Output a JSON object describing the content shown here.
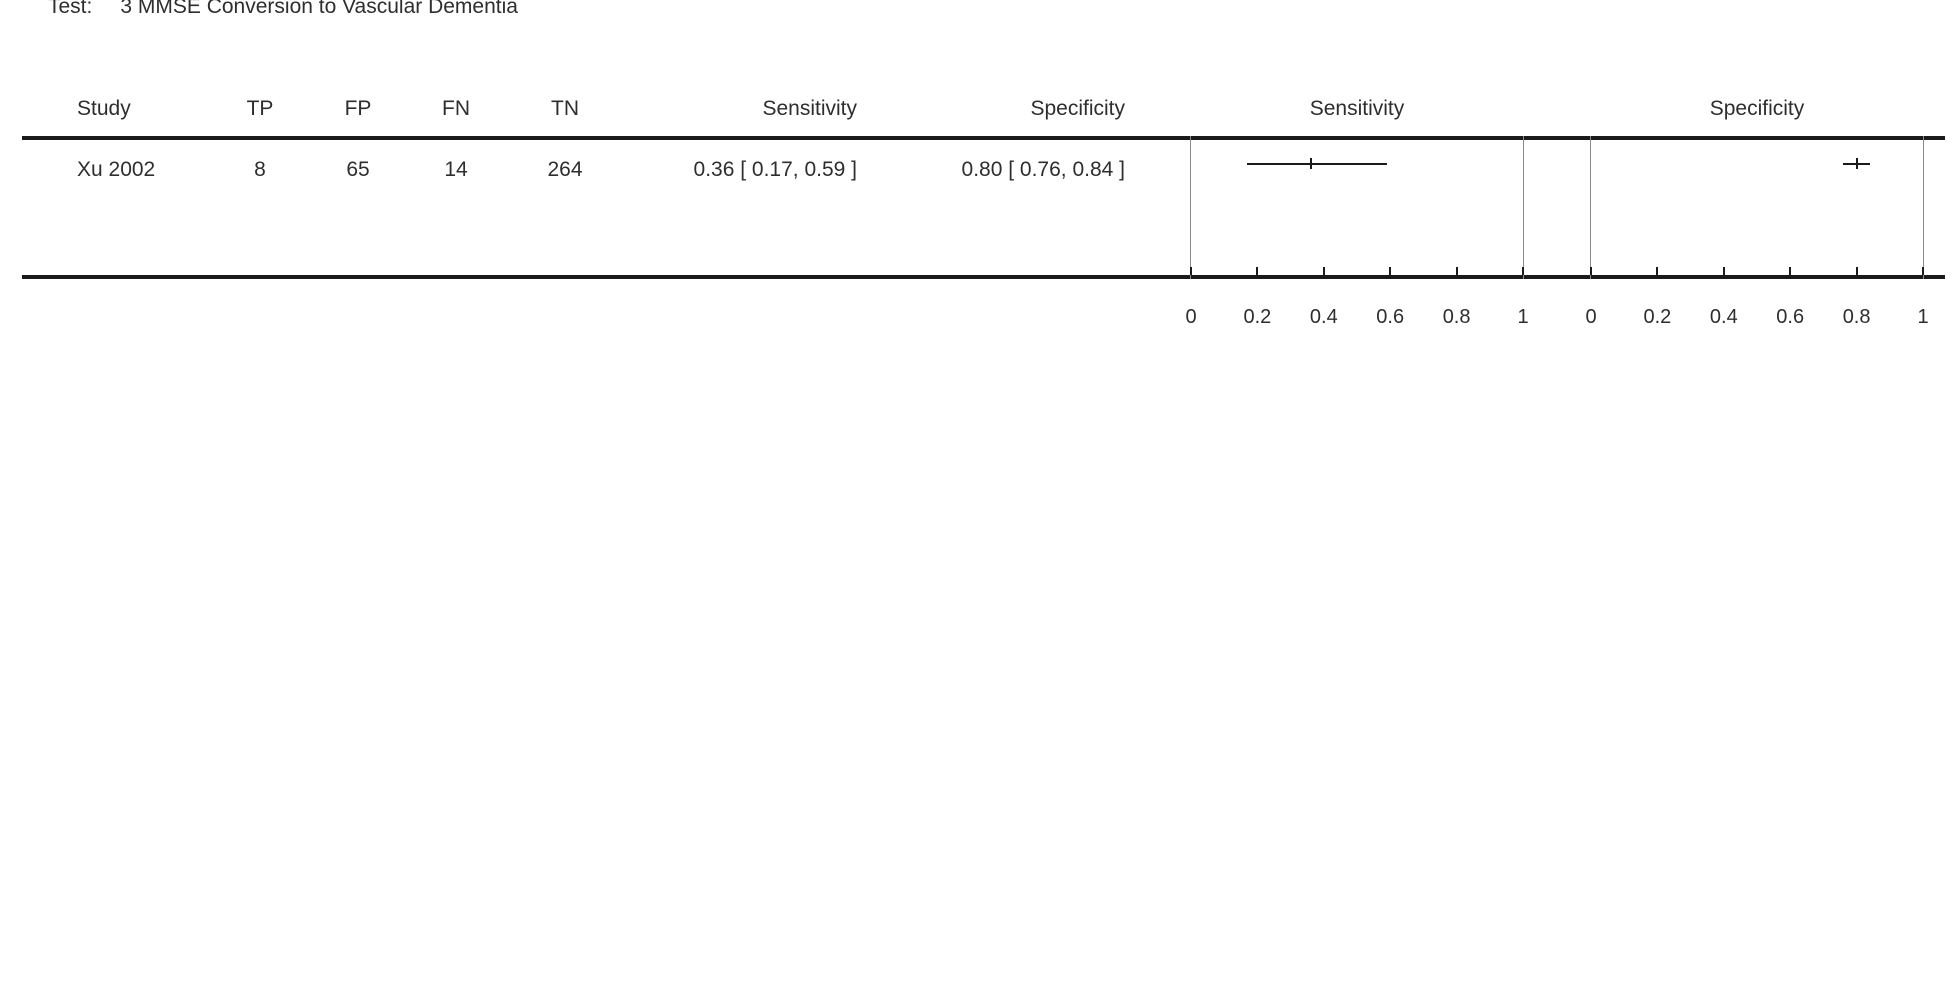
{
  "title": {
    "label": "Test:",
    "value": "3 MMSE Conversion to Vascular Dementia"
  },
  "table": {
    "headers": {
      "study": "Study",
      "tp": "TP",
      "fp": "FP",
      "fn": "FN",
      "tn": "TN",
      "sensitivity": "Sensitivity",
      "specificity": "Specificity"
    },
    "rows": [
      {
        "study": "Xu 2002",
        "tp": "8",
        "fp": "65",
        "fn": "14",
        "tn": "264",
        "sensitivity_ci": "0.36 [ 0.17, 0.59 ]",
        "specificity_ci": "0.80 [ 0.76, 0.84 ]"
      }
    ]
  },
  "chart_data": [
    {
      "type": "forest",
      "title": "Sensitivity",
      "xlim": [
        0,
        1
      ],
      "ticks": [
        0,
        0.2,
        0.4,
        0.6,
        0.8,
        1
      ],
      "tick_labels": [
        "0",
        "0.2",
        "0.4",
        "0.6",
        "0.8",
        "1"
      ],
      "points": [
        {
          "study": "Xu 2002",
          "estimate": 0.36,
          "ci": [
            0.17,
            0.59
          ]
        }
      ]
    },
    {
      "type": "forest",
      "title": "Specificity",
      "xlim": [
        0,
        1
      ],
      "ticks": [
        0,
        0.2,
        0.4,
        0.6,
        0.8,
        1
      ],
      "tick_labels": [
        "0",
        "0.2",
        "0.4",
        "0.6",
        "0.8",
        "1"
      ],
      "points": [
        {
          "study": "Xu 2002",
          "estimate": 0.8,
          "ci": [
            0.76,
            0.84
          ]
        }
      ]
    }
  ]
}
